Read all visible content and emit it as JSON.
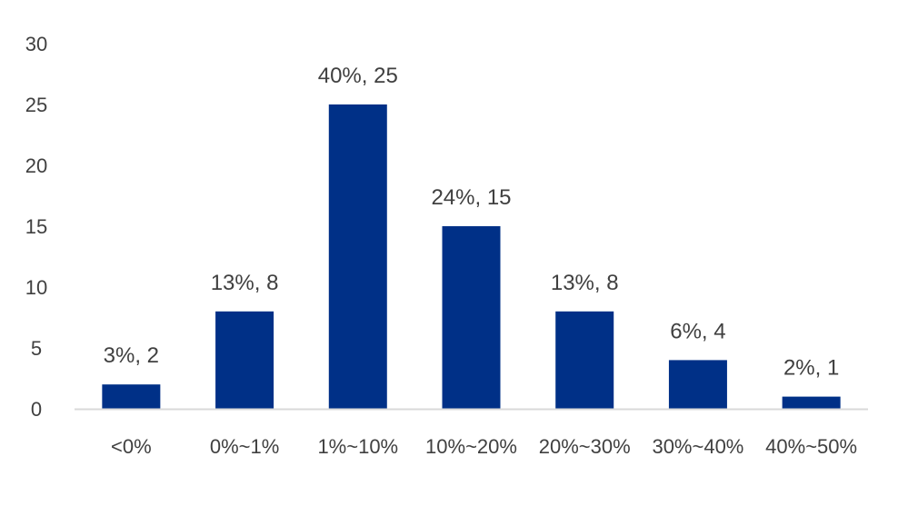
{
  "chart_data": {
    "type": "bar",
    "title": "",
    "xlabel": "",
    "ylabel": "",
    "categories": [
      "<0%",
      "0%~1%",
      "1%~10%",
      "10%~20%",
      "20%~30%",
      "30%~40%",
      "40%~50%"
    ],
    "values": [
      2,
      8,
      25,
      15,
      8,
      4,
      1
    ],
    "data_labels": [
      "3%, 2",
      "13%, 8",
      "40%, 25",
      "24%, 15",
      "13%, 8",
      "6%, 4",
      "2%, 1"
    ],
    "ylim": [
      0,
      30
    ],
    "yticks": [
      "0",
      "5",
      "10",
      "15",
      "20",
      "25",
      "30"
    ],
    "grid": false,
    "legend": "none",
    "colors": {
      "bar": "#003087",
      "axis": "#d9d9d9",
      "text": "#404040"
    }
  }
}
